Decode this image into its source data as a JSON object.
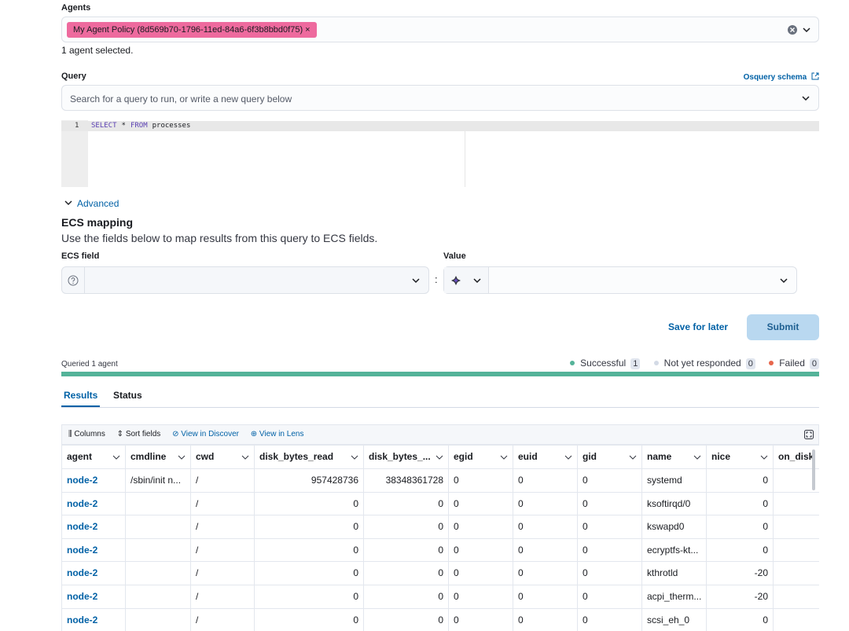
{
  "agents": {
    "label": "Agents",
    "chip": "My Agent Policy (8d569b70-1796-11ed-84a6-6f3b8bbd0f75)",
    "summary": "1 agent selected."
  },
  "query": {
    "label": "Query",
    "schema_link": "Osquery schema",
    "placeholder": "Search for a query to run, or write a new query below",
    "line_number": "1",
    "code": [
      "SELECT",
      "*",
      "FROM",
      "processes"
    ]
  },
  "advanced": {
    "toggle": "Advanced",
    "title": "ECS mapping",
    "description": "Use the fields below to map results from this query to ECS fields.",
    "ecs_field_label": "ECS field",
    "value_label": "Value",
    "separator": ":"
  },
  "actions": {
    "save": "Save for later",
    "submit": "Submit"
  },
  "status": {
    "queried": "Queried 1 agent",
    "items": [
      {
        "label": "Successful",
        "count": "1"
      },
      {
        "label": "Not yet responded",
        "count": "0"
      },
      {
        "label": "Failed",
        "count": "0"
      }
    ]
  },
  "tabs": [
    "Results",
    "Status"
  ],
  "toolbar": [
    "Columns",
    "Sort fields",
    "View in Discover",
    "View in Lens"
  ],
  "table": {
    "columns": [
      "agent",
      "cmdline",
      "cwd",
      "disk_bytes_read",
      "disk_bytes_...",
      "egid",
      "euid",
      "gid",
      "name",
      "nice",
      "on_disk"
    ],
    "rows": [
      [
        "node-2",
        "/sbin/init n...",
        "/",
        "957428736",
        "38348361728",
        "0",
        "0",
        "0",
        "systemd",
        "0",
        null
      ],
      [
        "node-2",
        null,
        "/",
        "0",
        "0",
        "0",
        "0",
        "0",
        "ksoftirqd/0",
        "0",
        null
      ],
      [
        "node-2",
        null,
        "/",
        "0",
        "0",
        "0",
        "0",
        "0",
        "kswapd0",
        "0",
        null
      ],
      [
        "node-2",
        null,
        "/",
        "0",
        "0",
        "0",
        "0",
        "0",
        "ecryptfs-kt...",
        "0",
        null
      ],
      [
        "node-2",
        null,
        "/",
        "0",
        "0",
        "0",
        "0",
        "0",
        "kthrotld",
        "-20",
        null
      ],
      [
        "node-2",
        null,
        "/",
        "0",
        "0",
        "0",
        "0",
        "0",
        "acpi_therm...",
        "-20",
        null
      ],
      [
        "node-2",
        null,
        "/",
        "0",
        "0",
        "0",
        "0",
        "0",
        "scsi_eh_0",
        "0",
        null
      ]
    ]
  }
}
